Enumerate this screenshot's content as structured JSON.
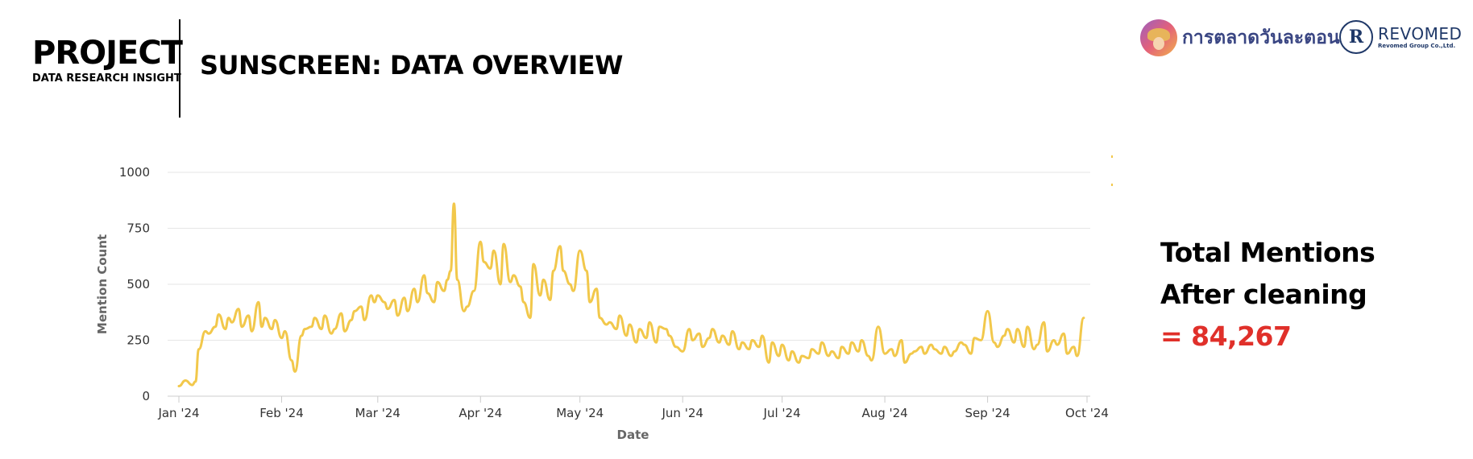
{
  "header": {
    "project_title": "PROJECT",
    "project_subtitle": "DATA RESEARCH INSIGHT",
    "page_title": "SUNSCREEN: DATA OVERVIEW"
  },
  "brands": {
    "brand1_name": "การตลาดวันละตอน",
    "brand2_name": "REVOMED",
    "brand2_sub": "Revomed Group Co.,Ltd."
  },
  "summary": {
    "line1": "Total Mentions",
    "line2": "After cleaning",
    "value": "= 84,267"
  },
  "colors": {
    "series": "#f2c84b",
    "highlight": "#e0302a",
    "grid": "#e6e6e6"
  },
  "chart_data": {
    "type": "line",
    "title": "",
    "xlabel": "Date",
    "ylabel": "Mention Count",
    "ylim": [
      0,
      1000
    ],
    "y_ticks": [
      0,
      250,
      500,
      750,
      1000
    ],
    "x_range": [
      "2024-01-01",
      "2024-10-01"
    ],
    "x_ticks": [
      {
        "date": "2024-01-01",
        "label": "Jan '24"
      },
      {
        "date": "2024-02-01",
        "label": "Feb '24"
      },
      {
        "date": "2024-03-01",
        "label": "Mar '24"
      },
      {
        "date": "2024-04-01",
        "label": "Apr '24"
      },
      {
        "date": "2024-05-01",
        "label": "May '24"
      },
      {
        "date": "2024-06-01",
        "label": "Jun '24"
      },
      {
        "date": "2024-07-01",
        "label": "Jul '24"
      },
      {
        "date": "2024-08-01",
        "label": "Aug '24"
      },
      {
        "date": "2024-09-01",
        "label": "Sep '24"
      },
      {
        "date": "2024-10-01",
        "label": "Oct '24"
      }
    ],
    "grid": true,
    "legend": "none",
    "x": [
      "2024-01-01",
      "2024-01-03",
      "2024-01-05",
      "2024-01-06",
      "2024-01-07",
      "2024-01-09",
      "2024-01-10",
      "2024-01-12",
      "2024-01-13",
      "2024-01-15",
      "2024-01-16",
      "2024-01-17",
      "2024-01-19",
      "2024-01-20",
      "2024-01-22",
      "2024-01-23",
      "2024-01-25",
      "2024-01-26",
      "2024-01-27",
      "2024-01-29",
      "2024-01-30",
      "2024-02-01",
      "2024-02-02",
      "2024-02-04",
      "2024-02-05",
      "2024-02-07",
      "2024-02-08",
      "2024-02-10",
      "2024-02-11",
      "2024-02-13",
      "2024-02-14",
      "2024-02-16",
      "2024-02-17",
      "2024-02-19",
      "2024-02-20",
      "2024-02-22",
      "2024-02-23",
      "2024-02-25",
      "2024-02-26",
      "2024-02-28",
      "2024-02-29",
      "2024-03-01",
      "2024-03-03",
      "2024-03-04",
      "2024-03-06",
      "2024-03-07",
      "2024-03-09",
      "2024-03-10",
      "2024-03-12",
      "2024-03-13",
      "2024-03-15",
      "2024-03-16",
      "2024-03-18",
      "2024-03-19",
      "2024-03-21",
      "2024-03-22",
      "2024-03-23",
      "2024-03-24",
      "2024-03-25",
      "2024-03-27",
      "2024-03-28",
      "2024-03-30",
      "2024-04-01",
      "2024-04-02",
      "2024-04-04",
      "2024-04-05",
      "2024-04-07",
      "2024-04-08",
      "2024-04-10",
      "2024-04-11",
      "2024-04-13",
      "2024-04-14",
      "2024-04-16",
      "2024-04-17",
      "2024-04-19",
      "2024-04-20",
      "2024-04-22",
      "2024-04-23",
      "2024-04-25",
      "2024-04-26",
      "2024-04-28",
      "2024-04-29",
      "2024-05-01",
      "2024-05-03",
      "2024-05-04",
      "2024-05-06",
      "2024-05-07",
      "2024-05-09",
      "2024-05-10",
      "2024-05-12",
      "2024-05-13",
      "2024-05-15",
      "2024-05-16",
      "2024-05-18",
      "2024-05-19",
      "2024-05-21",
      "2024-05-22",
      "2024-05-24",
      "2024-05-25",
      "2024-05-27",
      "2024-05-28",
      "2024-05-30",
      "2024-06-01",
      "2024-06-03",
      "2024-06-04",
      "2024-06-06",
      "2024-06-07",
      "2024-06-09",
      "2024-06-10",
      "2024-06-12",
      "2024-06-13",
      "2024-06-15",
      "2024-06-16",
      "2024-06-18",
      "2024-06-19",
      "2024-06-21",
      "2024-06-22",
      "2024-06-24",
      "2024-06-25",
      "2024-06-27",
      "2024-06-28",
      "2024-06-30",
      "2024-07-01",
      "2024-07-03",
      "2024-07-04",
      "2024-07-06",
      "2024-07-07",
      "2024-07-09",
      "2024-07-10",
      "2024-07-12",
      "2024-07-13",
      "2024-07-15",
      "2024-07-16",
      "2024-07-18",
      "2024-07-19",
      "2024-07-21",
      "2024-07-22",
      "2024-07-24",
      "2024-07-25",
      "2024-07-27",
      "2024-07-28",
      "2024-07-30",
      "2024-08-01",
      "2024-08-03",
      "2024-08-04",
      "2024-08-06",
      "2024-08-07",
      "2024-08-09",
      "2024-08-10",
      "2024-08-12",
      "2024-08-13",
      "2024-08-15",
      "2024-08-16",
      "2024-08-18",
      "2024-08-19",
      "2024-08-21",
      "2024-08-22",
      "2024-08-24",
      "2024-08-25",
      "2024-08-27",
      "2024-08-28",
      "2024-08-30",
      "2024-09-01",
      "2024-09-03",
      "2024-09-04",
      "2024-09-06",
      "2024-09-07",
      "2024-09-09",
      "2024-09-10",
      "2024-09-12",
      "2024-09-13",
      "2024-09-15",
      "2024-09-16",
      "2024-09-18",
      "2024-09-19",
      "2024-09-21",
      "2024-09-22",
      "2024-09-24",
      "2024-09-25",
      "2024-09-27",
      "2024-09-28",
      "2024-09-30"
    ],
    "series": [
      {
        "values": [
          45,
          70,
          50,
          65,
          210,
          290,
          280,
          310,
          365,
          300,
          350,
          330,
          390,
          310,
          360,
          290,
          420,
          310,
          350,
          300,
          340,
          260,
          290,
          160,
          110,
          270,
          300,
          310,
          350,
          300,
          360,
          280,
          300,
          370,
          290,
          340,
          380,
          400,
          340,
          450,
          420,
          450,
          420,
          390,
          430,
          360,
          440,
          380,
          480,
          420,
          540,
          460,
          420,
          510,
          470,
          520,
          560,
          860,
          520,
          380,
          400,
          470,
          690,
          600,
          570,
          650,
          500,
          680,
          510,
          540,
          490,
          420,
          350,
          590,
          450,
          520,
          430,
          560,
          670,
          560,
          500,
          470,
          650,
          560,
          420,
          480,
          350,
          320,
          330,
          300,
          360,
          270,
          320,
          240,
          300,
          260,
          330,
          240,
          310,
          300,
          270,
          220,
          200,
          300,
          250,
          280,
          220,
          260,
          300,
          240,
          270,
          230,
          290,
          210,
          240,
          210,
          250,
          220,
          270,
          150,
          240,
          180,
          230,
          160,
          200,
          150,
          180,
          170,
          210,
          190,
          240,
          180,
          200,
          170,
          220,
          190,
          240,
          200,
          250,
          180,
          160,
          310,
          190,
          210,
          180,
          250,
          150,
          190,
          200,
          220,
          190,
          230,
          210,
          190,
          220,
          180,
          200,
          240,
          230,
          190,
          260,
          250,
          380,
          240,
          220,
          270,
          300,
          240,
          300,
          220,
          310,
          210,
          230,
          330,
          200,
          250,
          230,
          280,
          190,
          220,
          180,
          350
        ]
      }
    ]
  }
}
